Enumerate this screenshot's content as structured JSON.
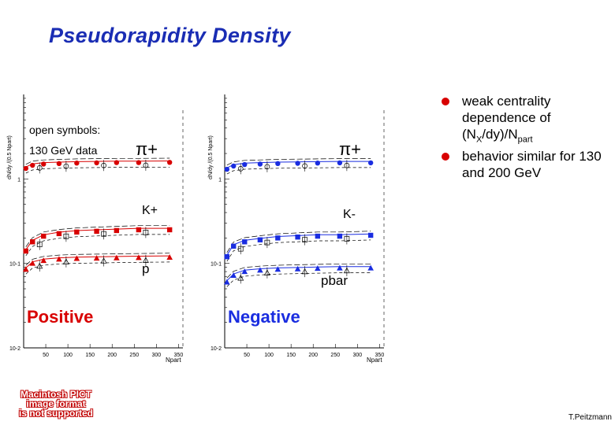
{
  "slide": {
    "title": "Pseudorapidity Density",
    "author": "T.Peitzmann",
    "pict_note": [
      "Macintosh PICT",
      "image format",
      "is not supported"
    ],
    "bullets": [
      {
        "text": "weak centrality dependence of (N",
        "sub1": "X",
        "mid": "/dy)/N",
        "sub2": "part"
      },
      {
        "text": "behavior similar for 130 and 200 GeV"
      }
    ]
  },
  "panels": {
    "positive": {
      "label": "Positive",
      "annotation": "open symbols:\n130 GeV data",
      "y_axis_title": "dN/dy /(0.5 Npart)",
      "x_axis_title": "Npart",
      "pion_label": "π+",
      "kaon_label": "K+",
      "proton_label": "p"
    },
    "negative": {
      "label": "Negative",
      "y_axis_title": "dN/dy /(0.5 Npart)",
      "x_axis_title": "Npart",
      "pion_label": "π+",
      "kaon_label": "K-",
      "proton_label": "pbar"
    }
  },
  "colors": {
    "title": "#1a2db4",
    "positive": "#d80000",
    "negative": "#1a2de0",
    "bullet": "#d80000"
  },
  "chart_data": [
    {
      "type": "scatter",
      "title": "Positive",
      "xlabel": "Npart",
      "ylabel": "dN/dy /(0.5 Npart)",
      "y_scale": "log",
      "xlim": [
        0,
        360
      ],
      "ylim": [
        0.01,
        10
      ],
      "x_ticks": [
        50,
        100,
        150,
        200,
        250,
        300,
        350
      ],
      "y_ticks": [
        {
          "value": 1,
          "label": "1"
        },
        {
          "value": 0.1,
          "label": "10-1"
        },
        {
          "value": 0.01,
          "label": "10-2"
        }
      ],
      "series": [
        {
          "name": "π+",
          "marker": "circle",
          "x": [
            5,
            20,
            45,
            80,
            120,
            165,
            210,
            260,
            330
          ],
          "y": [
            1.33,
            1.45,
            1.5,
            1.52,
            1.54,
            1.55,
            1.56,
            1.56,
            1.57
          ]
        },
        {
          "name": "K+",
          "marker": "square",
          "x": [
            5,
            20,
            45,
            80,
            120,
            165,
            210,
            260,
            330
          ],
          "y": [
            0.14,
            0.18,
            0.21,
            0.225,
            0.235,
            0.24,
            0.245,
            0.25,
            0.25
          ]
        },
        {
          "name": "p",
          "marker": "triangle",
          "x": [
            5,
            20,
            45,
            80,
            120,
            165,
            210,
            260,
            330
          ],
          "y": [
            0.085,
            0.1,
            0.108,
            0.112,
            0.114,
            0.115,
            0.116,
            0.117,
            0.118
          ]
        }
      ]
    },
    {
      "type": "scatter",
      "title": "Negative",
      "xlabel": "Npart",
      "ylabel": "dN/dy /(0.5 Npart)",
      "y_scale": "log",
      "xlim": [
        0,
        360
      ],
      "ylim": [
        0.01,
        10
      ],
      "x_ticks": [
        50,
        100,
        150,
        200,
        250,
        300,
        350
      ],
      "y_ticks": [
        {
          "value": 1,
          "label": "1"
        },
        {
          "value": 0.1,
          "label": "10-1"
        },
        {
          "value": 0.01,
          "label": "10-2"
        }
      ],
      "series": [
        {
          "name": "π+",
          "marker": "circle",
          "x": [
            5,
            20,
            45,
            80,
            120,
            165,
            210,
            260,
            330
          ],
          "y": [
            1.3,
            1.42,
            1.48,
            1.5,
            1.52,
            1.53,
            1.54,
            1.55,
            1.55
          ]
        },
        {
          "name": "K-",
          "marker": "square",
          "x": [
            5,
            20,
            45,
            80,
            120,
            165,
            210,
            260,
            330
          ],
          "y": [
            0.12,
            0.16,
            0.18,
            0.19,
            0.2,
            0.205,
            0.21,
            0.21,
            0.215
          ]
        },
        {
          "name": "pbar",
          "marker": "triangle",
          "x": [
            5,
            20,
            45,
            80,
            120,
            165,
            210,
            260,
            330
          ],
          "y": [
            0.06,
            0.072,
            0.08,
            0.083,
            0.085,
            0.086,
            0.087,
            0.088,
            0.088
          ]
        }
      ]
    }
  ]
}
